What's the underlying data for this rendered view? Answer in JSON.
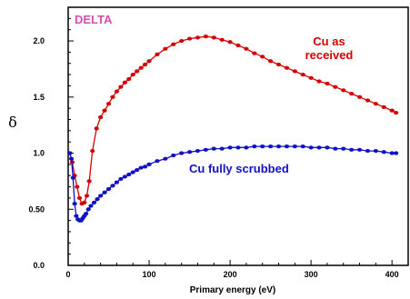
{
  "chart_data": {
    "type": "line",
    "title": "",
    "xlabel": "Primary energy (eV)",
    "ylabel": "δ",
    "xlim": [
      0,
      420
    ],
    "ylim": [
      0,
      2.3
    ],
    "x_ticks": [
      "0",
      "100",
      "200",
      "300",
      "400"
    ],
    "y_ticks": [
      "0.0",
      "0.50",
      "1.0",
      "1.5",
      "2.0"
    ],
    "grid": false,
    "annotations": {
      "corner": "DELTA",
      "red_label_line1": "Cu as",
      "red_label_line2": "received",
      "blue_label": "Cu fully scrubbed"
    },
    "colors": {
      "red": "#d40000",
      "blue": "#1010c8",
      "corner": "#d050b0"
    },
    "series": [
      {
        "color": "#d40000",
        "x": [
          2,
          5,
          8,
          11,
          14,
          17,
          20,
          23,
          26,
          30,
          35,
          40,
          45,
          50,
          55,
          60,
          65,
          70,
          75,
          80,
          85,
          90,
          95,
          100,
          110,
          120,
          130,
          140,
          150,
          160,
          170,
          180,
          190,
          200,
          210,
          220,
          230,
          240,
          250,
          260,
          270,
          280,
          290,
          300,
          310,
          320,
          330,
          340,
          350,
          360,
          370,
          380,
          390,
          400,
          405
        ],
        "y": [
          1.0,
          0.92,
          0.8,
          0.7,
          0.6,
          0.55,
          0.56,
          0.62,
          0.75,
          1.02,
          1.22,
          1.32,
          1.38,
          1.44,
          1.5,
          1.55,
          1.59,
          1.63,
          1.66,
          1.7,
          1.73,
          1.76,
          1.79,
          1.82,
          1.88,
          1.93,
          1.97,
          2.0,
          2.02,
          2.03,
          2.04,
          2.03,
          2.01,
          1.99,
          1.96,
          1.93,
          1.89,
          1.86,
          1.82,
          1.79,
          1.76,
          1.73,
          1.7,
          1.67,
          1.64,
          1.62,
          1.59,
          1.56,
          1.53,
          1.5,
          1.47,
          1.44,
          1.41,
          1.38,
          1.36
        ]
      },
      {
        "color": "#1010c8",
        "x": [
          2,
          4,
          6,
          8,
          10,
          12,
          14,
          16,
          18,
          20,
          22,
          25,
          28,
          32,
          36,
          40,
          45,
          50,
          55,
          60,
          65,
          70,
          75,
          80,
          85,
          90,
          95,
          100,
          110,
          120,
          130,
          140,
          150,
          160,
          170,
          180,
          190,
          200,
          210,
          220,
          230,
          240,
          250,
          260,
          270,
          280,
          290,
          300,
          310,
          320,
          330,
          340,
          350,
          360,
          370,
          380,
          390,
          400,
          405
        ],
        "y": [
          1.0,
          0.95,
          0.78,
          0.55,
          0.44,
          0.41,
          0.4,
          0.4,
          0.42,
          0.44,
          0.46,
          0.5,
          0.53,
          0.56,
          0.59,
          0.62,
          0.65,
          0.68,
          0.71,
          0.74,
          0.77,
          0.79,
          0.81,
          0.83,
          0.85,
          0.87,
          0.88,
          0.9,
          0.93,
          0.95,
          0.98,
          1.0,
          1.01,
          1.02,
          1.03,
          1.04,
          1.04,
          1.05,
          1.05,
          1.05,
          1.06,
          1.06,
          1.06,
          1.06,
          1.06,
          1.06,
          1.06,
          1.05,
          1.05,
          1.05,
          1.04,
          1.04,
          1.03,
          1.03,
          1.02,
          1.02,
          1.01,
          1.0,
          1.0
        ]
      }
    ]
  }
}
